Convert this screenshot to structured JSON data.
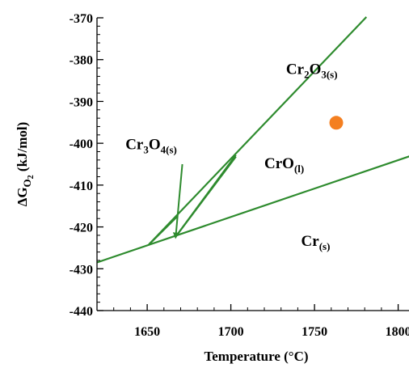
{
  "chart_data": {
    "type": "line",
    "title": "",
    "xlabel": "Temperature (°C)",
    "ylabel": {
      "main": "ΔG",
      "sub": "O",
      "subsub": "2",
      "unit": " (kJ/mol)"
    },
    "xlim": [
      1620,
      1820
    ],
    "ylim": [
      -440,
      -370
    ],
    "xticks": [
      1650,
      1700,
      1750,
      1800
    ],
    "yticks": [
      -370,
      -380,
      -390,
      -400,
      -410,
      -420,
      -430,
      -440
    ],
    "minor_xtick_step": 10,
    "minor_ytick_step": 2,
    "grid": false,
    "legend": "none",
    "line_color": "#2e8b2e",
    "point_color": "#f47f20",
    "series": [
      {
        "x": [
          1620,
          1820
        ],
        "y": [
          -428.5,
          -401.3
        ]
      },
      {
        "x": [
          1651,
          1781
        ],
        "y": [
          -424.2,
          -369.8
        ]
      },
      {
        "x": [
          1651,
          1668
        ],
        "y": [
          -424.2,
          -417.5
        ]
      },
      {
        "x": [
          1668,
          1703
        ],
        "y": [
          -421.8,
          -403.2
        ]
      },
      {
        "x": [
          1668,
          1703
        ],
        "y": [
          -421.8,
          -402.8
        ]
      }
    ],
    "points": [
      {
        "x": 1763,
        "y": -395.1
      }
    ],
    "annotations": [
      {
        "parts": [
          [
            "Cr",
            ""
          ],
          [
            "2",
            "sub"
          ],
          [
            "O",
            ""
          ],
          [
            "3(s)",
            "sub"
          ]
        ],
        "x": 1733,
        "y": -383.4
      },
      {
        "parts": [
          [
            "Cr",
            ""
          ],
          [
            "3",
            "sub"
          ],
          [
            "O",
            ""
          ],
          [
            "4(s)",
            "sub"
          ]
        ],
        "x": 1637,
        "y": -401.4
      },
      {
        "parts": [
          [
            "CrO",
            ""
          ],
          [
            "(l)",
            "sub"
          ]
        ],
        "x": 1720,
        "y": -406.0
      },
      {
        "parts": [
          [
            "Cr",
            ""
          ],
          [
            "(s)",
            "sub"
          ]
        ],
        "x": 1742,
        "y": -424.5
      }
    ],
    "arrow": {
      "from": [
        1671,
        -405.0
      ],
      "to": [
        1667,
        -422.5
      ]
    }
  }
}
